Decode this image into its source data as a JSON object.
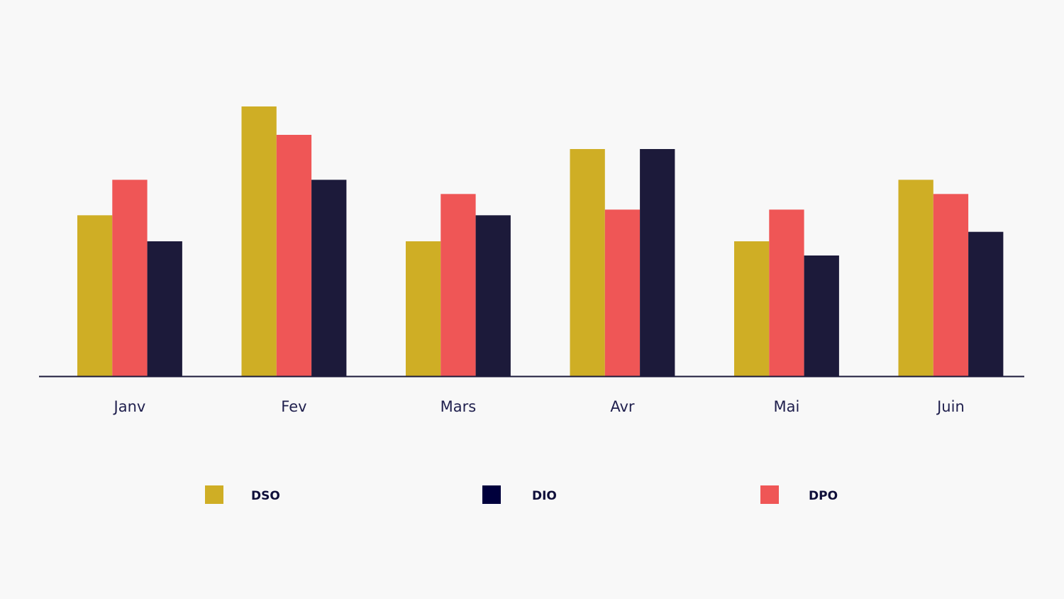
{
  "colors": {
    "background": "#f8f8f8",
    "axis": "#1c1a3a",
    "label": "#1f1f4d"
  },
  "chart_data": {
    "type": "bar",
    "categories": [
      "Janv",
      "Fev",
      "Mars",
      "Avr",
      "Mai",
      "Juin"
    ],
    "series": [
      {
        "name": "DSO",
        "color": "#cfae25",
        "values": [
          34,
          57,
          28.5,
          48,
          28.5,
          41.5
        ]
      },
      {
        "name": "DPO",
        "color": "#ef5656",
        "values": [
          41.5,
          51,
          38.5,
          35.2,
          35.2,
          38.5
        ]
      },
      {
        "name": "DIO",
        "color": "#1c1a3a",
        "values": [
          28.5,
          41.5,
          34,
          48,
          25.5,
          30.5
        ]
      }
    ],
    "legend": [
      {
        "name": "DSO",
        "color": "#cfae25"
      },
      {
        "name": "DIO",
        "color": "#00003c"
      },
      {
        "name": "DPO",
        "color": "#ef5656"
      }
    ],
    "legend_position": "bottom",
    "ylim": [
      0,
      60
    ],
    "grid": false,
    "title": "",
    "xlabel": "",
    "ylabel": ""
  }
}
